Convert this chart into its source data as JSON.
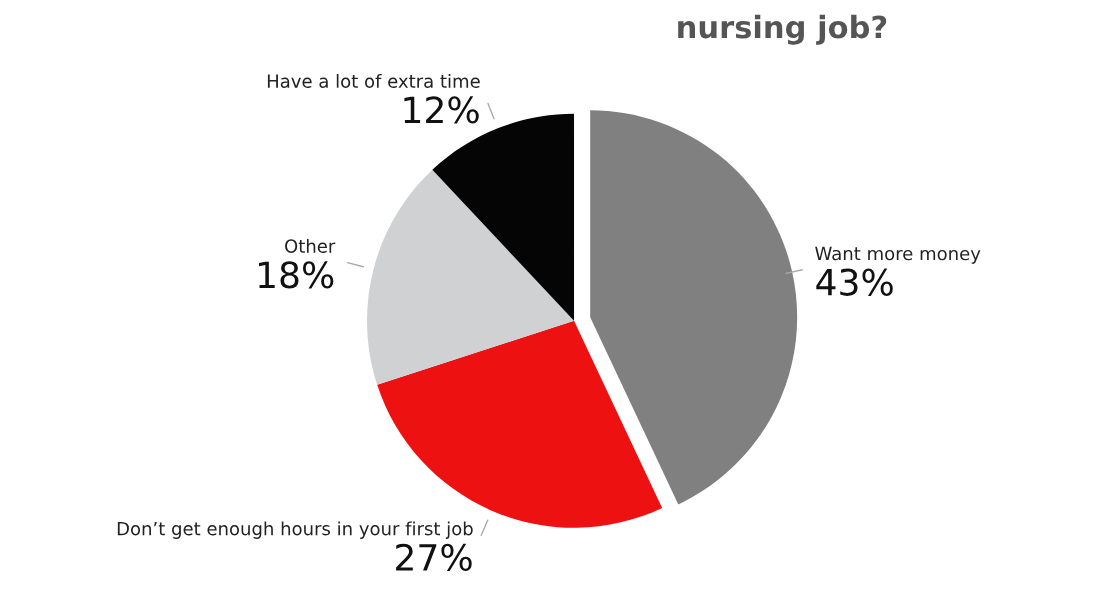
{
  "chart_data": {
    "type": "pie",
    "title": "nursing job?",
    "categories": [
      "Want more money",
      "Don’t get enough hours in your first job",
      "Other",
      "Have a lot of extra time"
    ],
    "values": [
      43,
      27,
      18,
      12
    ],
    "value_labels": [
      "43%",
      "27%",
      "18%",
      "12%"
    ],
    "colors": [
      "#808080",
      "#ee1111",
      "#d0d1d3",
      "#050505"
    ]
  }
}
